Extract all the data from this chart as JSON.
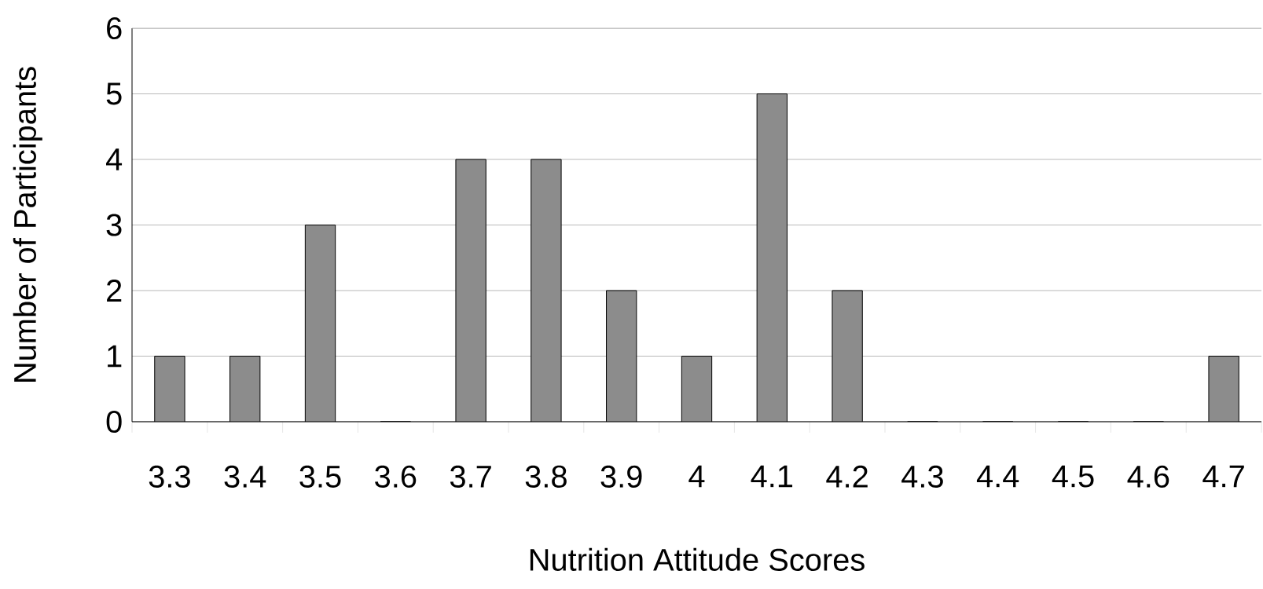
{
  "chart_data": {
    "type": "bar",
    "xlabel": "Nutrition Attitude Scores",
    "ylabel": "Number of Participants",
    "categories": [
      "3.3",
      "3.4",
      "3.5",
      "3.6",
      "3.7",
      "3.8",
      "3.9",
      "4",
      "4.1",
      "4.2",
      "4.3",
      "4.4",
      "4.5",
      "4.6",
      "4.7"
    ],
    "values": [
      1,
      1,
      3,
      0,
      4,
      4,
      2,
      1,
      5,
      2,
      0,
      0,
      0,
      0,
      1
    ],
    "color": "#8c8c8c",
    "ylim": [
      0,
      6
    ],
    "yticks": [
      0,
      1,
      2,
      3,
      4,
      5,
      6
    ],
    "grid": "y"
  }
}
